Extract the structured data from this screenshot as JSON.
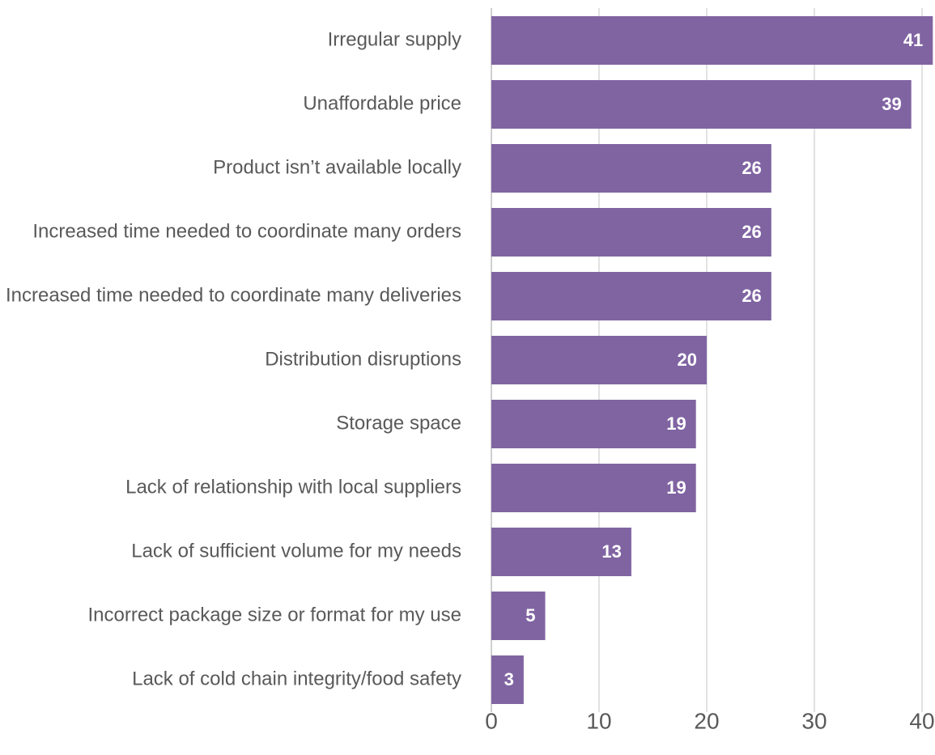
{
  "chart_data": {
    "type": "bar",
    "orientation": "horizontal",
    "categories": [
      "Irregular supply",
      "Unaffordable price",
      "Product isn’t available locally",
      "Increased time needed to coordinate many orders",
      "Increased time needed to coordinate many deliveries",
      "Distribution disruptions",
      "Storage space",
      "Lack of relationship with local suppliers",
      "Lack of sufficient volume for my needs",
      "Incorrect package size or format for my use",
      "Lack of cold chain integrity/food safety"
    ],
    "values": [
      41,
      39,
      26,
      26,
      26,
      20,
      19,
      19,
      13,
      5,
      3
    ],
    "color": "#8064a2",
    "xlim": [
      0,
      40
    ],
    "xticks": [
      0,
      10,
      20,
      30,
      40
    ],
    "grid": true
  }
}
